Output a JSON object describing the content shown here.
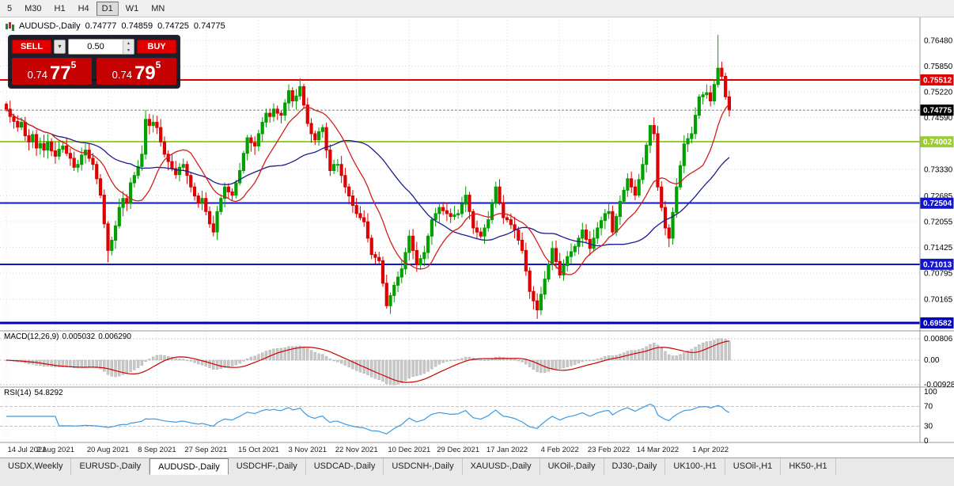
{
  "toolbar": {
    "timeframes": [
      "5",
      "M30",
      "H1",
      "H4",
      "D1",
      "W1",
      "MN"
    ],
    "active": "D1"
  },
  "chart_title": {
    "symbol": "AUDUSD-,Daily",
    "open": "0.74777",
    "high": "0.74859",
    "low": "0.74725",
    "close": "0.74775"
  },
  "trade_panel": {
    "sell_label": "SELL",
    "buy_label": "BUY",
    "volume": "0.50",
    "sell_price_main": "0.74",
    "sell_price_big": "77",
    "sell_price_sup": "5",
    "buy_price_main": "0.74",
    "buy_price_big": "79",
    "buy_price_sup": "5"
  },
  "macd_panel": {
    "label": "MACD(12,26,9)",
    "main_value": "0.005032",
    "signal_value": "0.006290"
  },
  "rsi_panel": {
    "label": "RSI(14)",
    "value": "54.8292"
  },
  "tabs": {
    "items": [
      "USDX,Weekly",
      "EURUSD-,Daily",
      "AUDUSD-,Daily",
      "USDCHF-,Daily",
      "USDCAD-,Daily",
      "USDCNH-,Daily",
      "XAUUSD-,Daily",
      "UKOil-,Daily",
      "DJ30-,Daily",
      "UK100-,H1",
      "USOil-,H1",
      "HK50-,H1"
    ],
    "active": "AUDUSD-,Daily"
  },
  "chart_data": {
    "type": "candlestick",
    "symbol": "AUDUSD-",
    "timeframe": "Daily",
    "title": "AUDUSD-,Daily",
    "ohlc_current": {
      "open": 0.74777,
      "high": 0.74859,
      "low": 0.74725,
      "close": 0.74775
    },
    "price_range": {
      "top": 0.76961,
      "bottom": 0.69465
    },
    "y_axis_labels": [
      0.7648,
      0.7585,
      0.7522,
      0.7459,
      0.7333,
      0.72685,
      0.72055,
      0.71425,
      0.70795,
      0.70165
    ],
    "x_labels": [
      {
        "i": 0,
        "label": "14 Jul 2021"
      },
      {
        "i": 13,
        "label": "2 Aug 2021"
      },
      {
        "i": 27,
        "label": "20 Aug 2021"
      },
      {
        "i": 40,
        "label": "8 Sep 2021"
      },
      {
        "i": 53,
        "label": "27 Sep 2021"
      },
      {
        "i": 67,
        "label": "15 Oct 2021"
      },
      {
        "i": 80,
        "label": "3 Nov 2021"
      },
      {
        "i": 93,
        "label": "22 Nov 2021"
      },
      {
        "i": 107,
        "label": "10 Dec 2021"
      },
      {
        "i": 120,
        "label": "29 Dec 2021"
      },
      {
        "i": 133,
        "label": "17 Jan 2022"
      },
      {
        "i": 147,
        "label": "4 Feb 2022"
      },
      {
        "i": 160,
        "label": "23 Feb 2022"
      },
      {
        "i": 173,
        "label": "14 Mar 2022"
      },
      {
        "i": 187,
        "label": "1 Apr 2022"
      }
    ],
    "first_open": 0.7492,
    "closes": [
      0.748,
      0.7462,
      0.745,
      0.7436,
      0.7448,
      0.7415,
      0.74,
      0.7418,
      0.7385,
      0.7396,
      0.738,
      0.74,
      0.7378,
      0.7365,
      0.7382,
      0.739,
      0.7372,
      0.736,
      0.7338,
      0.7345,
      0.7368,
      0.738,
      0.736,
      0.7345,
      0.731,
      0.727,
      0.72,
      0.7135,
      0.716,
      0.7195,
      0.724,
      0.7262,
      0.725,
      0.73,
      0.7318,
      0.734,
      0.737,
      0.7455,
      0.744,
      0.7448,
      0.7435,
      0.74,
      0.737,
      0.7352,
      0.7335,
      0.732,
      0.7338,
      0.7345,
      0.7318,
      0.729,
      0.7268,
      0.725,
      0.7262,
      0.723,
      0.72,
      0.718,
      0.723,
      0.7262,
      0.729,
      0.7278,
      0.727,
      0.73,
      0.733,
      0.7372,
      0.741,
      0.7398,
      0.739,
      0.742,
      0.7448,
      0.747,
      0.7462,
      0.748,
      0.747,
      0.7465,
      0.7495,
      0.7525,
      0.75,
      0.7512,
      0.7535,
      0.749,
      0.7445,
      0.742,
      0.7405,
      0.7425,
      0.7435,
      0.738,
      0.733,
      0.7345,
      0.7345,
      0.7318,
      0.729,
      0.7268,
      0.7245,
      0.7225,
      0.7215,
      0.7205,
      0.7165,
      0.7125,
      0.7118,
      0.711,
      0.7055,
      0.7,
      0.7025,
      0.705,
      0.707,
      0.709,
      0.713,
      0.717,
      0.7135,
      0.71,
      0.7115,
      0.713,
      0.717,
      0.721,
      0.7225,
      0.724,
      0.7232,
      0.7225,
      0.7218,
      0.7222,
      0.7225,
      0.7248,
      0.727,
      0.723,
      0.719,
      0.718,
      0.717,
      0.719,
      0.721,
      0.725,
      0.729,
      0.7252,
      0.7215,
      0.721,
      0.7198,
      0.7185,
      0.716,
      0.7135,
      0.7085,
      0.7035,
      0.7012,
      0.699,
      0.7028,
      0.7065,
      0.7102,
      0.714,
      0.7108,
      0.7075,
      0.7098,
      0.712,
      0.7132,
      0.7145,
      0.7165,
      0.7185,
      0.7162,
      0.714,
      0.7165,
      0.719,
      0.7208,
      0.7225,
      0.723,
      0.718,
      0.7218,
      0.7255,
      0.7282,
      0.731,
      0.729,
      0.727,
      0.7308,
      0.7345,
      0.7392,
      0.744,
      0.742,
      0.729,
      0.724,
      0.719,
      0.7165,
      0.7228,
      0.729,
      0.7342,
      0.7395,
      0.7408,
      0.742,
      0.7465,
      0.751,
      0.7515,
      0.752,
      0.75,
      0.754,
      0.758,
      0.756,
      0.751,
      0.74775
    ],
    "wicks": {
      "27": {
        "low": 0.7106
      },
      "37": {
        "high": 0.7478
      },
      "78": {
        "high": 0.7555
      },
      "101": {
        "low": 0.6993
      },
      "141": {
        "low": 0.6968
      },
      "171": {
        "high": 0.7441
      },
      "176": {
        "low": 0.7143
      },
      "189": {
        "high": 0.7661
      }
    },
    "hlines": [
      {
        "value": 0.75512,
        "tag": "0.75512",
        "color": "#e00000",
        "width": 2
      },
      {
        "value": 0.74002,
        "tag": "0.74002",
        "color": "#9acd32",
        "width": 2
      },
      {
        "value": 0.72504,
        "tag": "0.72504",
        "color": "#1414c8",
        "width": 2
      },
      {
        "value": 0.71013,
        "tag": "0.71013",
        "color": "#1414c8",
        "width": 2
      },
      {
        "value": 0.69582,
        "tag": "0.69582",
        "color": "#0000b8",
        "width": 3
      }
    ],
    "current_price": {
      "value": 0.74775,
      "tag": "0.74775",
      "color": "#000000"
    },
    "indicators": {
      "ma_fast": {
        "type": "sma",
        "period": 13,
        "color": "#d02020"
      },
      "ma_slow": {
        "type": "sma",
        "period": 34,
        "color": "#1c1c8c"
      },
      "macd": {
        "fast": 12,
        "slow": 26,
        "signal": 9,
        "hist_color": "#c8c8c8",
        "hist_stroke": "#a8a8a8",
        "signal_color": "#cc0000",
        "axis_values": [
          0.00806,
          0,
          -0.00928
        ],
        "axis_labels": [
          "0.00806",
          "0.00",
          "-0.00928"
        ]
      },
      "rsi": {
        "period": 14,
        "color": "#3e9ade",
        "levels": [
          70,
          30
        ],
        "axis_values": [
          100,
          70,
          30,
          0
        ],
        "axis_labels": [
          "100",
          "70",
          "30",
          "0"
        ]
      }
    },
    "colors": {
      "up": "#00a000",
      "down": "#dc0000",
      "grid": "#dcdcdc"
    }
  }
}
